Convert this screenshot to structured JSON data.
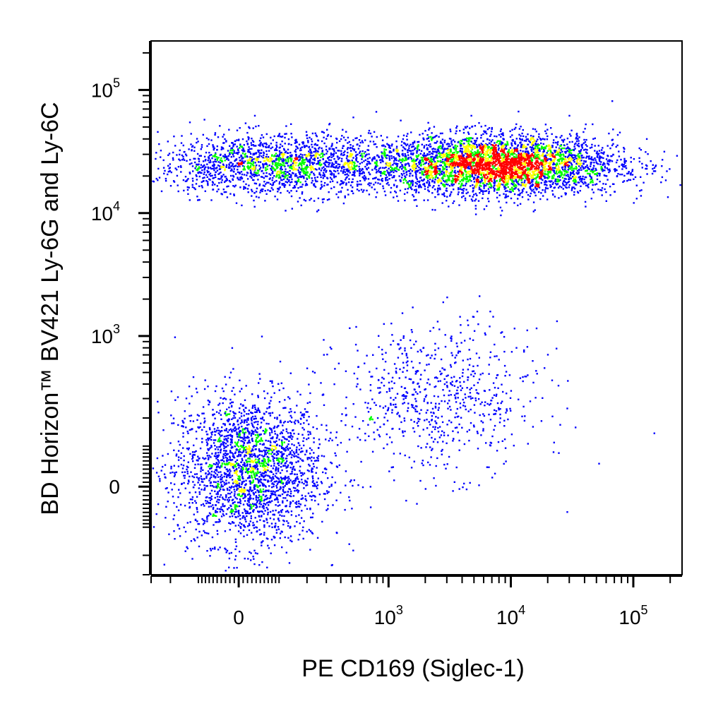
{
  "chart_data": {
    "type": "scatter",
    "style": "flow-cytometry pseudocolor dot plot",
    "xlabel": "PE CD169 (Siglec-1)",
    "ylabel": "BD Horizon™ BV421 Ly-6G and Ly-6C",
    "x_scale": "biexponential",
    "y_scale": "biexponential",
    "x_ticks": [
      {
        "base": "0",
        "exp": "",
        "value": 0
      },
      {
        "base": "10",
        "exp": "3",
        "value": 1000
      },
      {
        "base": "10",
        "exp": "4",
        "value": 10000
      },
      {
        "base": "10",
        "exp": "5",
        "value": 100000
      }
    ],
    "y_ticks": [
      {
        "base": "0",
        "exp": "",
        "value": 0
      },
      {
        "base": "10",
        "exp": "3",
        "value": 1000
      },
      {
        "base": "10",
        "exp": "4",
        "value": 10000
      },
      {
        "base": "10",
        "exp": "5",
        "value": 100000
      }
    ],
    "xlim": [
      -300,
      250000
    ],
    "ylim": [
      -300,
      250000
    ],
    "density_colors": [
      "#0000ff",
      "#00ff00",
      "#ffff00",
      "#ff0000"
    ],
    "populations": [
      {
        "x_center": 20,
        "y_center": 40,
        "approx_fraction": 0.27
      },
      {
        "x_center": 100,
        "y_center": 25000,
        "approx_fraction": 0.2
      },
      {
        "x_center": 7500,
        "y_center": 25000,
        "approx_fraction": 0.45
      },
      {
        "x_center": 2500,
        "y_center": 300,
        "approx_fraction": 0.08
      }
    ],
    "grid": false,
    "legend": "none"
  }
}
